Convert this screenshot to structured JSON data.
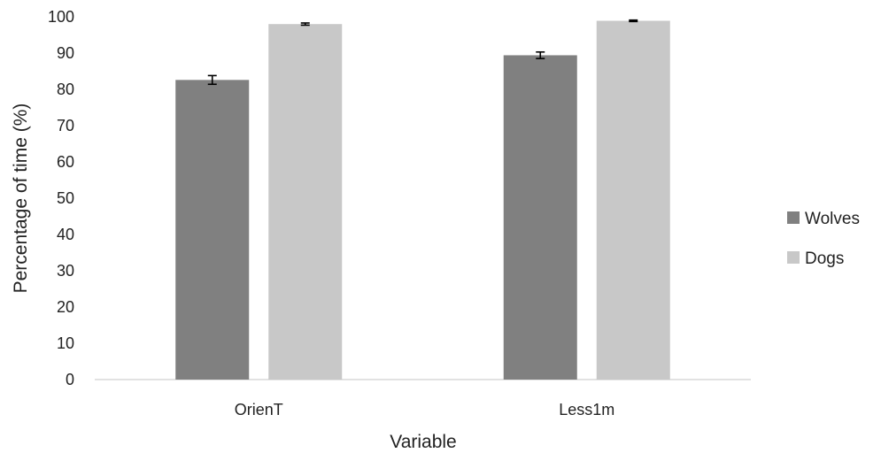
{
  "chart_data": {
    "type": "bar",
    "title": "",
    "xlabel": "Variable",
    "ylabel": "Percentage of time (%)",
    "categories": [
      "OrienT",
      "Less1m"
    ],
    "ylim": [
      0,
      100
    ],
    "yticks": [
      0,
      10,
      20,
      30,
      40,
      50,
      60,
      70,
      80,
      90,
      100
    ],
    "grid": false,
    "legend_position": "right",
    "error_bars": true,
    "series": [
      {
        "name": "Wolves",
        "values": [
          82.6,
          89.4
        ],
        "errors": [
          1.2,
          0.9
        ],
        "color": "#808080"
      },
      {
        "name": "Dogs",
        "values": [
          98.0,
          98.9
        ],
        "errors": [
          0.3,
          0.2
        ],
        "color": "#c8c8c8"
      }
    ]
  }
}
